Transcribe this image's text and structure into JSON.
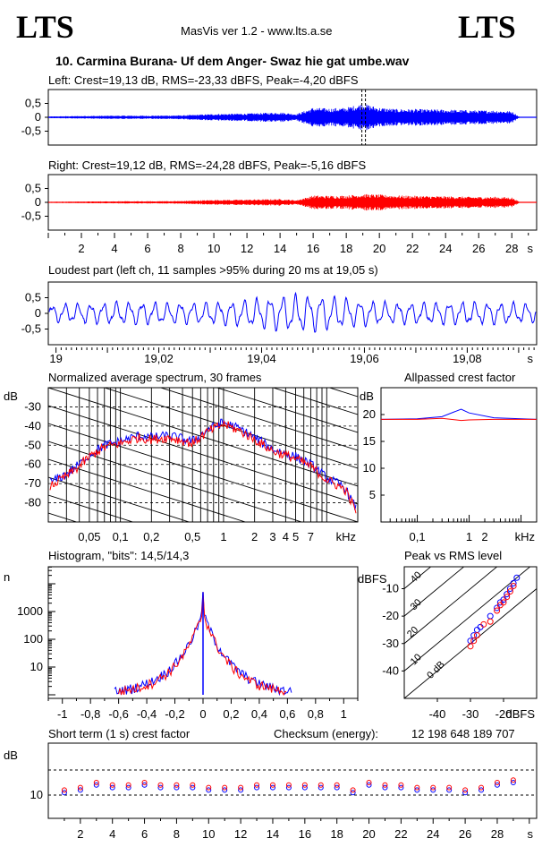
{
  "header": {
    "logo_left": "LTS",
    "logo_right": "LTS",
    "app": "MasVis ver 1.2 - www.lts.a.se",
    "file_title": "10. Carmina Burana- Uf dem Anger- Swaz hie gat umbe.wav"
  },
  "colors": {
    "left": "#0000ff",
    "right": "#ff0000"
  },
  "chart_data": [
    {
      "type": "line",
      "title": "Left: Crest=19,13 dB, RMS=-23,33 dBFS, Peak=-4,20 dBFS",
      "yticks": [
        "0,5",
        "0",
        "-0,5"
      ],
      "ylim": [
        -1,
        1
      ],
      "xlim": [
        0,
        29.5
      ],
      "peak_marker_s": 19.05,
      "envelope_s": [
        0,
        2,
        4,
        6,
        8,
        10,
        12,
        14,
        15,
        16,
        17,
        18,
        19,
        20,
        21,
        22,
        24,
        26,
        27,
        28,
        28.5,
        29.5
      ],
      "envelope_amp": [
        0.03,
        0.05,
        0.06,
        0.06,
        0.07,
        0.12,
        0.14,
        0.18,
        0.12,
        0.35,
        0.32,
        0.35,
        0.5,
        0.35,
        0.3,
        0.3,
        0.28,
        0.25,
        0.25,
        0.22,
        0.0,
        0.0
      ]
    },
    {
      "type": "line",
      "title": "Right: Crest=19,12 dB, RMS=-24,28 dBFS, Peak=-5,16 dBFS",
      "yticks": [
        "0,5",
        "0",
        "-0,5"
      ],
      "ylim": [
        -1,
        1
      ],
      "xlim": [
        0,
        29.5
      ],
      "xticks": [
        "2",
        "4",
        "6",
        "8",
        "10",
        "12",
        "14",
        "16",
        "18",
        "20",
        "22",
        "24",
        "26",
        "28"
      ],
      "xunit": "s",
      "envelope_s": [
        0,
        2,
        4,
        6,
        8,
        10,
        12,
        14,
        15,
        16,
        17,
        18,
        19,
        20,
        21,
        22,
        24,
        26,
        27,
        28,
        28.5,
        29.5
      ],
      "envelope_amp": [
        0.02,
        0.03,
        0.04,
        0.04,
        0.05,
        0.09,
        0.1,
        0.12,
        0.08,
        0.25,
        0.24,
        0.25,
        0.3,
        0.28,
        0.25,
        0.24,
        0.22,
        0.2,
        0.2,
        0.18,
        0.0,
        0.0
      ]
    },
    {
      "type": "line",
      "title": "Loudest part (left  ch, 11 samples >95% during 20 ms at 19,05 s)",
      "yticks": [
        "0,5",
        "0",
        "-0,5"
      ],
      "ylim": [
        -1,
        1
      ],
      "xticks": [
        "19",
        "19,02",
        "19,04",
        "19,06",
        "19,08"
      ],
      "xunit": "s"
    },
    {
      "type": "line",
      "title": "Normalized average spectrum, 30 frames",
      "ylabel": "dB",
      "yticks": [
        "-30",
        "-40",
        "-50",
        "-60",
        "-70",
        "-80"
      ],
      "ylim": [
        -90,
        -20
      ],
      "xticks": [
        "0,05",
        "0,1",
        "0,2",
        "0,5",
        "1",
        "2",
        "3",
        "4",
        "5",
        "7"
      ],
      "xunit": "kHz",
      "series": [
        {
          "freq_khz": [
            0.02,
            0.03,
            0.04,
            0.05,
            0.07,
            0.1,
            0.15,
            0.2,
            0.3,
            0.5,
            0.7,
            1,
            1.5,
            2,
            3,
            5,
            7,
            10,
            15,
            20
          ],
          "db": [
            -70,
            -65,
            -60,
            -55,
            -50,
            -48,
            -45,
            -46,
            -45,
            -48,
            -42,
            -38,
            -42,
            -46,
            -52,
            -56,
            -60,
            -67,
            -72,
            -85
          ]
        },
        {
          "freq_khz": [
            0.02,
            0.03,
            0.04,
            0.05,
            0.07,
            0.1,
            0.15,
            0.2,
            0.3,
            0.5,
            0.7,
            1,
            1.5,
            2,
            3,
            5,
            7,
            10,
            15,
            20
          ],
          "db": [
            -72,
            -66,
            -61,
            -56,
            -51,
            -49,
            -46,
            -47,
            -46,
            -49,
            -43,
            -39,
            -43,
            -47,
            -53,
            -57,
            -61,
            -68,
            -73,
            -86
          ]
        }
      ]
    },
    {
      "type": "line",
      "title": "Allpassed crest factor",
      "ylabel": "dB",
      "yticks": [
        "20",
        "15",
        "10",
        "5"
      ],
      "ylim": [
        0,
        25
      ],
      "xticks": [
        "0,1",
        "1",
        "2"
      ],
      "xunit": "kHz",
      "series": [
        {
          "freq_khz": [
            0.02,
            0.1,
            0.3,
            0.7,
            1,
            3,
            20
          ],
          "db": [
            19.1,
            19.2,
            19.6,
            21.0,
            20.3,
            19.4,
            19.1
          ]
        },
        {
          "freq_khz": [
            0.02,
            0.1,
            0.3,
            0.7,
            1,
            3,
            20
          ],
          "db": [
            19.1,
            19.1,
            19.3,
            18.9,
            19.0,
            19.1,
            19.1
          ]
        }
      ]
    },
    {
      "type": "line",
      "title": "Histogram, \"bits\": 14,5/14,3",
      "ylabel": "n",
      "yticks": [
        "1000",
        "100",
        "10"
      ],
      "xticks": [
        "-1",
        "-0,8",
        "-0,6",
        "-0,4",
        "-0,2",
        "0",
        "0,2",
        "0,4",
        "0,6",
        "0,8",
        "1"
      ],
      "xlim": [
        -1.1,
        1.1
      ]
    },
    {
      "type": "scatter",
      "title": "Peak vs RMS level",
      "ylabel": "dBFS",
      "yticks": [
        "-10",
        "-20",
        "-30",
        "-40"
      ],
      "xticks": [
        "-40",
        "-30",
        "-20"
      ],
      "xunit": "dBFS",
      "diagonal_labels": [
        "40",
        "30",
        "20",
        "10",
        "0 dB"
      ],
      "xlim": [
        -50,
        -10
      ],
      "ylim": [
        -50,
        -2
      ],
      "series": [
        {
          "x": [
            -30,
            -29,
            -28,
            -27,
            -24,
            -22,
            -21,
            -20,
            -19,
            -18,
            -17,
            -16
          ],
          "y": [
            -29,
            -27,
            -25,
            -24,
            -20,
            -17,
            -15,
            -14,
            -12,
            -10,
            -8,
            -6
          ]
        },
        {
          "x": [
            -30,
            -29,
            -28,
            -26,
            -24,
            -22,
            -21,
            -20,
            -19,
            -18,
            -17
          ],
          "y": [
            -31,
            -29,
            -27,
            -23,
            -22,
            -18,
            -16,
            -15,
            -13,
            -11,
            -9
          ]
        }
      ]
    },
    {
      "type": "scatter",
      "title": "Short term (1 s) crest factor",
      "ylabel": "dB",
      "checksum_label": "Checksum (energy):",
      "checksum_value": "12 198 648 189 707",
      "yticks": [
        "10"
      ],
      "xticks": [
        "2",
        "4",
        "6",
        "8",
        "10",
        "12",
        "14",
        "16",
        "18",
        "20",
        "22",
        "24",
        "26",
        "28"
      ],
      "xunit": "s",
      "xlim": [
        0,
        30
      ],
      "series": [
        {
          "x": [
            1,
            2,
            3,
            4,
            5,
            6,
            7,
            8,
            9,
            10,
            11,
            12,
            13,
            14,
            15,
            16,
            17,
            18,
            19,
            20,
            21,
            22,
            23,
            24,
            25,
            26,
            27,
            28,
            29
          ],
          "y": [
            11,
            12,
            14,
            13,
            13,
            14,
            13,
            13,
            13,
            12,
            12,
            12,
            13,
            13,
            13,
            13,
            13,
            13,
            11,
            14,
            13,
            13,
            12,
            12,
            12,
            11,
            12,
            14,
            15
          ]
        },
        {
          "x": [
            1,
            2,
            3,
            4,
            5,
            6,
            7,
            8,
            9,
            10,
            11,
            12,
            13,
            14,
            15,
            16,
            17,
            18,
            19,
            20,
            21,
            22,
            23,
            24,
            25,
            26,
            27,
            28,
            29
          ],
          "y": [
            12,
            13,
            15,
            14,
            14,
            15,
            14,
            14,
            14,
            13,
            13,
            13,
            14,
            14,
            14,
            14,
            14,
            14,
            12,
            15,
            14,
            14,
            13,
            13,
            13,
            12,
            13,
            15,
            16
          ]
        }
      ]
    }
  ]
}
